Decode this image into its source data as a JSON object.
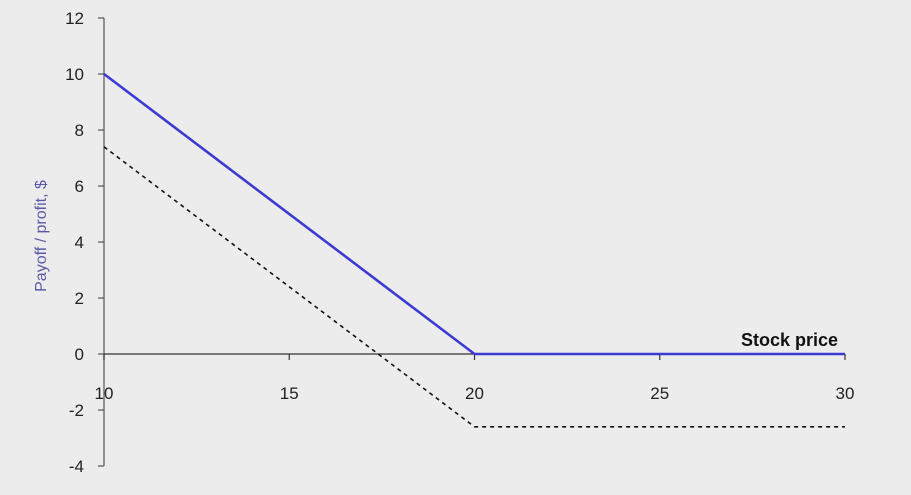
{
  "chart_data": {
    "type": "line",
    "title": "",
    "xlabel": "Stock price",
    "ylabel": "Payoff / profit, $",
    "xlim": [
      10,
      30
    ],
    "ylim": [
      -4,
      12
    ],
    "x_ticks": [
      "10",
      "15",
      "20",
      "25",
      "30"
    ],
    "y_ticks": [
      "-4",
      "-2",
      "0",
      "2",
      "4",
      "6",
      "8",
      "10",
      "12"
    ],
    "grid": false,
    "legend": "none",
    "series": [
      {
        "style": "solid",
        "color": "#3b3bd1",
        "x": [
          10,
          20,
          30
        ],
        "y": [
          10,
          0,
          0
        ]
      },
      {
        "style": "dashed",
        "color": "#111111",
        "x": [
          10,
          20,
          30
        ],
        "y": [
          7.4,
          -2.6,
          -2.6
        ]
      }
    ]
  }
}
